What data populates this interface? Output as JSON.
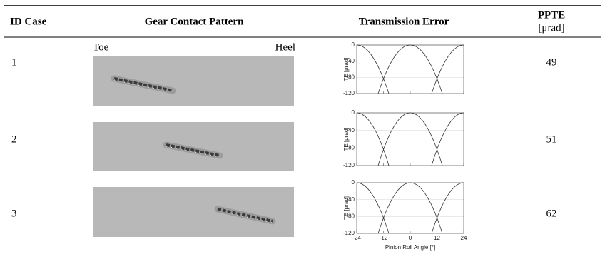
{
  "table": {
    "headers": {
      "id": "ID Case",
      "pattern": "Gear Contact Pattern",
      "te": "Transmission Error",
      "ppte": "PPTE",
      "ppte_unit": "[μrad]"
    },
    "pattern_labels": {
      "toe": "Toe",
      "heel": "Heel"
    },
    "rows": [
      {
        "id": 1,
        "ppte": 49
      },
      {
        "id": 2,
        "ppte": 51
      },
      {
        "id": 3,
        "ppte": 62
      }
    ],
    "te_chart": {
      "y_label": "TE [μrad]",
      "x_label": "Pinion Roll Angle [°]",
      "xlim": [
        -24,
        24
      ],
      "ylim": [
        -120,
        0
      ],
      "xticks": [
        -24,
        -12,
        0,
        12,
        24
      ],
      "yticks": [
        0,
        -40,
        -80,
        -120
      ]
    }
  }
}
